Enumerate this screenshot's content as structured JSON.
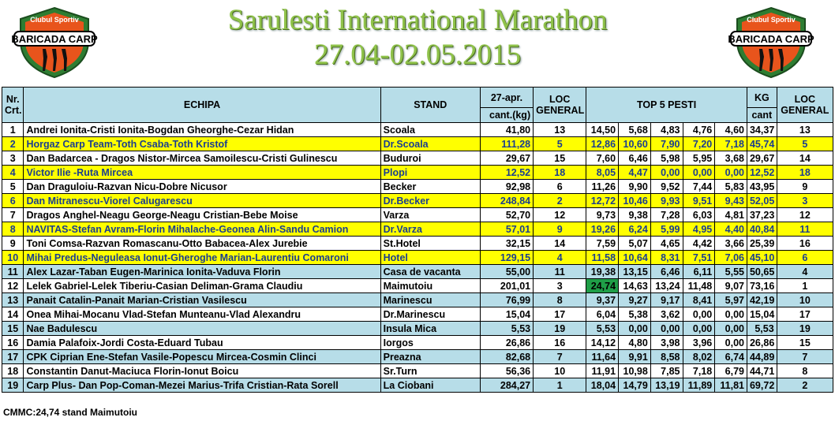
{
  "header": {
    "title": "Sarulesti International Marathon",
    "dates": "27.04-02.05.2015",
    "logo_text_top": "Clubul Sportiv",
    "logo_text_main": "BARICADA CARP"
  },
  "columns": {
    "nr": "Nr. Crt.",
    "echipa": "ECHIPA",
    "stand": "STAND",
    "day": "27-apr.",
    "day_sub": "cant.(kg)",
    "loc": "LOC GENERAL",
    "top5": "TOP 5 PESTI",
    "kg": "KG",
    "kg_sub": "cant",
    "loc2": "LOC GENERAL"
  },
  "rows": [
    {
      "nr": "1",
      "team": "Andrei Ionita-Cristi Ionita-Bogdan Gheorghe-Cezar Hidan",
      "stand": "Scoala",
      "cant": "41,80",
      "loc": "13",
      "f1": "14,50",
      "f2": "5,68",
      "f3": "4,83",
      "f4": "4,76",
      "f5": "4,60",
      "kg": "34,37",
      "loc2": "13",
      "style": "white"
    },
    {
      "nr": "2",
      "team": "Horgaz Carp Team-Toth Csaba-Toth Kristof",
      "stand": "Dr.Scoala",
      "cant": "111,28",
      "loc": "5",
      "f1": "12,86",
      "f2": "10,60",
      "f3": "7,90",
      "f4": "7,20",
      "f5": "7,18",
      "kg": "45,74",
      "loc2": "5",
      "style": "yellow"
    },
    {
      "nr": "3",
      "team": "Dan Badarcea - Dragos Nistor-Mircea Samoilescu-Cristi Gulinescu",
      "stand": "Buduroi",
      "cant": "29,67",
      "loc": "15",
      "f1": "7,60",
      "f2": "6,46",
      "f3": "5,98",
      "f4": "5,95",
      "f5": "3,68",
      "kg": "29,67",
      "loc2": "14",
      "style": "white"
    },
    {
      "nr": "4",
      "team": "Victor Ilie -Ruta Mircea",
      "stand": "Plopi",
      "cant": "12,52",
      "loc": "18",
      "f1": "8,05",
      "f2": "4,47",
      "f3": "0,00",
      "f4": "0,00",
      "f5": "0,00",
      "kg": "12,52",
      "loc2": "18",
      "style": "yellow"
    },
    {
      "nr": "5",
      "team": "Dan Draguloiu-Razvan Nicu-Dobre Nicusor",
      "stand": "Becker",
      "cant": "92,98",
      "loc": "6",
      "f1": "11,26",
      "f2": "9,90",
      "f3": "9,52",
      "f4": "7,44",
      "f5": "5,83",
      "kg": "43,95",
      "loc2": "9",
      "style": "white"
    },
    {
      "nr": "6",
      "team": "Dan Mitranescu-Viorel Calugarescu",
      "stand": "Dr.Becker",
      "cant": "248,84",
      "loc": "2",
      "f1": "12,72",
      "f2": "10,46",
      "f3": "9,93",
      "f4": "9,51",
      "f5": "9,43",
      "kg": "52,05",
      "loc2": "3",
      "style": "yellow"
    },
    {
      "nr": "7",
      "team": "Dragos Anghel-Neagu George-Neagu Cristian-Bebe Moise",
      "stand": "Varza",
      "cant": "52,70",
      "loc": "12",
      "f1": "9,73",
      "f2": "9,38",
      "f3": "7,28",
      "f4": "6,03",
      "f5": "4,81",
      "kg": "37,23",
      "loc2": "12",
      "style": "white"
    },
    {
      "nr": "8",
      "team": "NAVITAS-Stefan Avram-Florin Mihalache-Geonea Alin-Sandu Camion",
      "stand": "Dr.Varza",
      "cant": "57,01",
      "loc": "9",
      "f1": "19,26",
      "f2": "6,24",
      "f3": "5,99",
      "f4": "4,95",
      "f5": "4,40",
      "kg": "40,84",
      "loc2": "11",
      "style": "yellow"
    },
    {
      "nr": "9",
      "team": "Toni Comsa-Razvan Romascanu-Otto Babacea-Alex Jurebie",
      "stand": "St.Hotel",
      "cant": "32,15",
      "loc": "14",
      "f1": "7,59",
      "f2": "5,07",
      "f3": "4,65",
      "f4": "4,42",
      "f5": "3,66",
      "kg": "25,39",
      "loc2": "16",
      "style": "white"
    },
    {
      "nr": "10",
      "team": "Mihai Predus-Neguleasa Ionut-Gheroghe Marian-Laurentiu Comaroni",
      "stand": "Hotel",
      "cant": "129,15",
      "loc": "4",
      "f1": "11,58",
      "f2": "10,64",
      "f3": "8,31",
      "f4": "7,51",
      "f5": "7,06",
      "kg": "45,10",
      "loc2": "6",
      "style": "yellow"
    },
    {
      "nr": "11",
      "team": "Alex Lazar-Taban Eugen-Marinica Ionita-Vaduva Florin",
      "stand": "Casa de vacanta",
      "cant": "55,00",
      "loc": "11",
      "f1": "19,38",
      "f2": "13,15",
      "f3": "6,46",
      "f4": "6,11",
      "f5": "5,55",
      "kg": "50,65",
      "loc2": "4",
      "style": "blue"
    },
    {
      "nr": "12",
      "team": "Lelek Gabriel-Lelek Tiberiu-Casian Deliman-Grama Claudiu",
      "stand": "Maimutoiu",
      "cant": "201,01",
      "loc": "3",
      "f1": "24,74",
      "f2": "14,63",
      "f3": "13,24",
      "f4": "11,48",
      "f5": "9,07",
      "kg": "73,16",
      "loc2": "1",
      "style": "white",
      "highlight": "f1"
    },
    {
      "nr": "13",
      "team": "Panait Catalin-Panait Marian-Cristian Vasilescu",
      "stand": "Marinescu",
      "cant": "76,99",
      "loc": "8",
      "f1": "9,37",
      "f2": "9,27",
      "f3": "9,17",
      "f4": "8,41",
      "f5": "5,97",
      "kg": "42,19",
      "loc2": "10",
      "style": "blue"
    },
    {
      "nr": "14",
      "team": "Onea Mihai-Mocanu Vlad-Stefan Munteanu-Vlad Alexandru",
      "stand": "Dr.Marinescu",
      "cant": "15,04",
      "loc": "17",
      "f1": "6,04",
      "f2": "5,38",
      "f3": "3,62",
      "f4": "0,00",
      "f5": "0,00",
      "kg": "15,04",
      "loc2": "17",
      "style": "white"
    },
    {
      "nr": "15",
      "team": "Nae Badulescu",
      "stand": "Insula Mica",
      "cant": "5,53",
      "loc": "19",
      "f1": "5,53",
      "f2": "0,00",
      "f3": "0,00",
      "f4": "0,00",
      "f5": "0,00",
      "kg": "5,53",
      "loc2": "19",
      "style": "blue"
    },
    {
      "nr": "16",
      "team": "Damia Palafoix-Jordi Costa-Eduard Tubau",
      "stand": "Iorgos",
      "cant": "26,86",
      "loc": "16",
      "f1": "14,12",
      "f2": "4,80",
      "f3": "3,98",
      "f4": "3,96",
      "f5": "0,00",
      "kg": "26,86",
      "loc2": "15",
      "style": "white"
    },
    {
      "nr": "17",
      "team": "CPK Ciprian Ene-Stefan Vasile-Popescu Mircea-Cosmin Clinci",
      "stand": "Preazna",
      "cant": "82,68",
      "loc": "7",
      "f1": "11,64",
      "f2": "9,91",
      "f3": "8,58",
      "f4": "8,02",
      "f5": "6,74",
      "kg": "44,89",
      "loc2": "7",
      "style": "blue"
    },
    {
      "nr": "18",
      "team": "Constantin Danut-Maciuca Florin-Ionut Boicu",
      "stand": "Sr.Turn",
      "cant": "56,36",
      "loc": "10",
      "f1": "11,91",
      "f2": "10,98",
      "f3": "7,85",
      "f4": "7,18",
      "f5": "6,79",
      "kg": "44,71",
      "loc2": "8",
      "style": "white"
    },
    {
      "nr": "19",
      "team": "Carp Plus- Dan Pop-Coman-Mezei Marius-Trifa Cristian-Rata Sorell",
      "stand": "La Ciobani",
      "cant": "284,27",
      "loc": "1",
      "f1": "18,04",
      "f2": "14,79",
      "f3": "13,19",
      "f4": "11,89",
      "f5": "11,81",
      "kg": "69,72",
      "loc2": "2",
      "style": "blue"
    }
  ],
  "footer": "CMMC:24,74 stand Maimutoiu",
  "colors": {
    "yellow": "#ffff00",
    "blue": "#b7dde8",
    "green": "#1f9e47",
    "title_green": "#8fc24a",
    "logo_orange": "#e8541c",
    "logo_green": "#2e7d32"
  }
}
